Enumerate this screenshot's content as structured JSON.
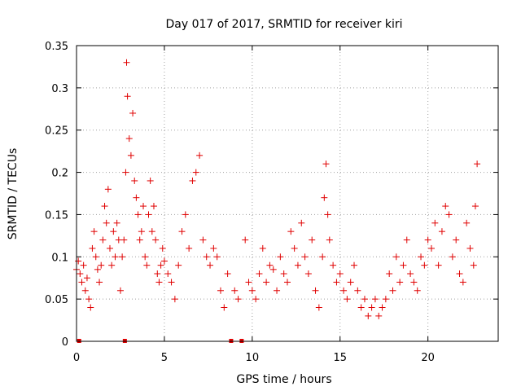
{
  "chart_data": {
    "type": "scatter",
    "title": "Day 017 of 2017, SRMTID for receiver kiri",
    "xlabel": "GPS time / hours",
    "ylabel": "SRMTID / TECUs",
    "xlim": [
      0,
      24
    ],
    "ylim": [
      0,
      0.35
    ],
    "xticks": [
      0,
      5,
      10,
      15,
      20
    ],
    "xtick_labels": [
      "0",
      "5",
      "10",
      "15",
      "20"
    ],
    "yticks": [
      0,
      0.05,
      0.1,
      0.15,
      0.2,
      0.25,
      0.3,
      0.35
    ],
    "ytick_labels": [
      "0",
      "0.05",
      "0.1",
      "0.15",
      "0.2",
      "0.25",
      "0.3",
      "0.35"
    ],
    "grid": true,
    "marker": "plus",
    "color": "#e00000",
    "data_gap_markers_x": [
      0.15,
      2.75,
      8.8,
      9.4
    ],
    "series": [
      {
        "name": "SRMTID",
        "x": [
          0.0,
          0.1,
          0.2,
          0.3,
          0.4,
          0.5,
          0.6,
          0.7,
          0.8,
          0.9,
          1.0,
          1.1,
          1.2,
          1.3,
          1.4,
          1.5,
          1.6,
          1.7,
          1.8,
          1.9,
          2.0,
          2.1,
          2.2,
          2.3,
          2.4,
          2.5,
          2.6,
          2.7,
          2.8,
          2.85,
          2.9,
          3.0,
          3.1,
          3.2,
          3.3,
          3.4,
          3.5,
          3.6,
          3.7,
          3.8,
          3.9,
          4.0,
          4.1,
          4.2,
          4.3,
          4.4,
          4.5,
          4.6,
          4.7,
          4.8,
          4.9,
          5.0,
          5.2,
          5.4,
          5.6,
          5.8,
          6.0,
          6.2,
          6.4,
          6.6,
          6.8,
          7.0,
          7.2,
          7.4,
          7.6,
          7.8,
          8.0,
          8.2,
          8.4,
          8.6,
          9.0,
          9.2,
          9.6,
          9.8,
          10.0,
          10.2,
          10.4,
          10.6,
          10.8,
          11.0,
          11.2,
          11.4,
          11.6,
          11.8,
          12.0,
          12.2,
          12.4,
          12.6,
          12.8,
          13.0,
          13.2,
          13.4,
          13.6,
          13.8,
          14.0,
          14.1,
          14.2,
          14.3,
          14.4,
          14.6,
          14.8,
          15.0,
          15.2,
          15.4,
          15.6,
          15.8,
          16.0,
          16.2,
          16.4,
          16.6,
          16.8,
          17.0,
          17.2,
          17.4,
          17.6,
          17.8,
          18.0,
          18.2,
          18.4,
          18.6,
          18.8,
          19.0,
          19.2,
          19.4,
          19.6,
          19.8,
          20.0,
          20.2,
          20.4,
          20.6,
          20.8,
          21.0,
          21.2,
          21.4,
          21.6,
          21.8,
          22.0,
          22.2,
          22.4,
          22.6,
          22.7,
          22.8
        ],
        "y": [
          0.085,
          0.095,
          0.08,
          0.07,
          0.09,
          0.06,
          0.075,
          0.05,
          0.04,
          0.11,
          0.13,
          0.1,
          0.085,
          0.07,
          0.09,
          0.12,
          0.16,
          0.14,
          0.18,
          0.11,
          0.09,
          0.13,
          0.1,
          0.14,
          0.12,
          0.06,
          0.1,
          0.12,
          0.2,
          0.33,
          0.29,
          0.24,
          0.22,
          0.27,
          0.19,
          0.17,
          0.15,
          0.12,
          0.13,
          0.16,
          0.1,
          0.09,
          0.15,
          0.19,
          0.13,
          0.16,
          0.12,
          0.08,
          0.07,
          0.09,
          0.11,
          0.095,
          0.08,
          0.07,
          0.05,
          0.09,
          0.13,
          0.15,
          0.11,
          0.19,
          0.2,
          0.22,
          0.12,
          0.1,
          0.09,
          0.11,
          0.1,
          0.06,
          0.04,
          0.08,
          0.06,
          0.05,
          0.12,
          0.07,
          0.06,
          0.05,
          0.08,
          0.11,
          0.07,
          0.09,
          0.085,
          0.06,
          0.1,
          0.08,
          0.07,
          0.13,
          0.11,
          0.09,
          0.14,
          0.1,
          0.08,
          0.12,
          0.06,
          0.04,
          0.1,
          0.17,
          0.21,
          0.15,
          0.12,
          0.09,
          0.07,
          0.08,
          0.06,
          0.05,
          0.07,
          0.09,
          0.06,
          0.04,
          0.05,
          0.03,
          0.04,
          0.05,
          0.03,
          0.04,
          0.05,
          0.08,
          0.06,
          0.1,
          0.07,
          0.09,
          0.12,
          0.08,
          0.07,
          0.06,
          0.1,
          0.09,
          0.12,
          0.11,
          0.14,
          0.09,
          0.13,
          0.16,
          0.15,
          0.1,
          0.12,
          0.08,
          0.07,
          0.14,
          0.11,
          0.09,
          0.16,
          0.21
        ]
      }
    ]
  }
}
